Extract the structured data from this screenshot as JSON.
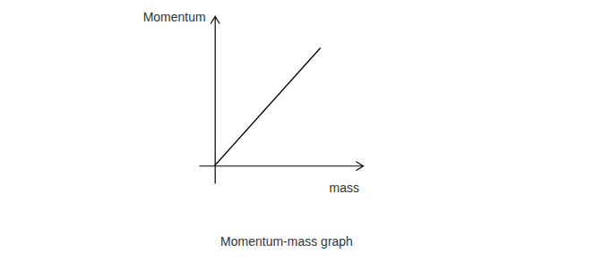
{
  "chart_data": {
    "type": "line",
    "title": "Momentum-mass graph",
    "x_label": "mass",
    "y_label": "Momentum",
    "x": [
      0,
      1
    ],
    "values": [
      0,
      1
    ],
    "color": "#000000",
    "xlim": [
      -0.15,
      1.4
    ],
    "ylim": [
      -0.15,
      1.27
    ],
    "xticks": [],
    "yticks": [],
    "tick_labels": false
  }
}
